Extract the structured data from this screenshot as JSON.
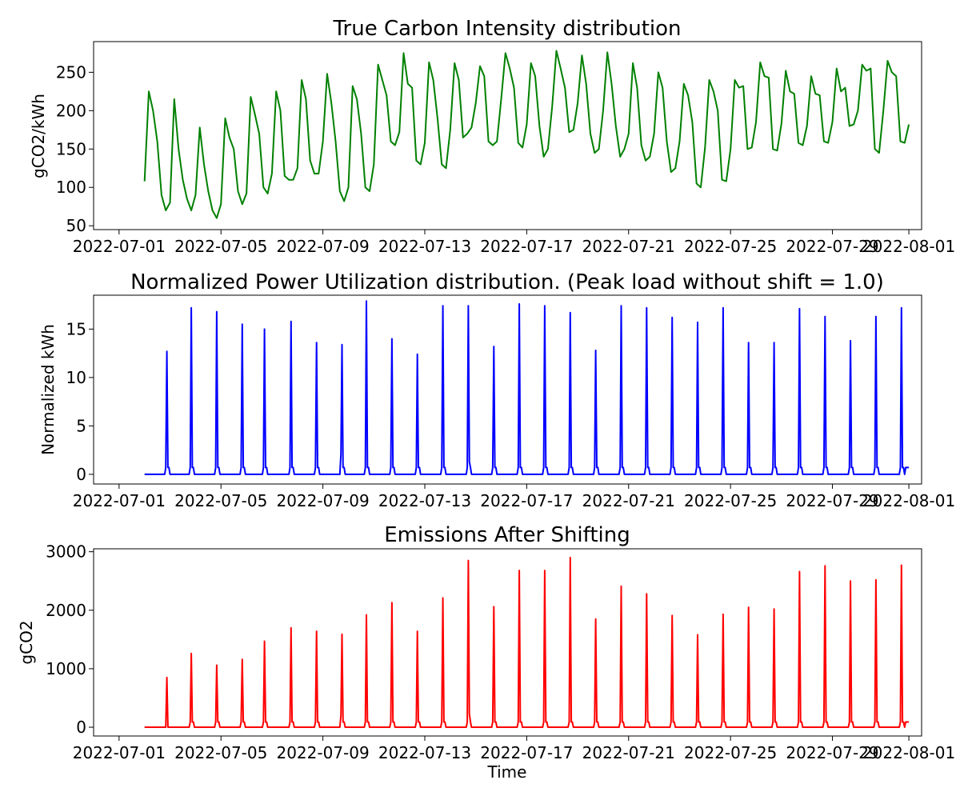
{
  "chart_data": [
    {
      "type": "line",
      "title": "True Carbon Intensity distribution",
      "ylabel": "gCO2/kWh",
      "xlabel": "",
      "color": "#008000",
      "grid": false,
      "ylim": [
        45,
        290
      ],
      "yticks": [
        50,
        100,
        150,
        200,
        250
      ],
      "xlim": [
        "2022-06-30T00:00",
        "2022-08-01T12:00"
      ],
      "xticks": [
        "2022-07-01",
        "2022-07-05",
        "2022-07-09",
        "2022-07-13",
        "2022-07-17",
        "2022-07-21",
        "2022-07-25",
        "2022-07-29",
        "2022-08-01"
      ],
      "series": [
        {
          "x": [
            "2022-07-02T00:00",
            "2022-07-02T04:00",
            "2022-07-02T08:00",
            "2022-07-02T12:00",
            "2022-07-02T16:00",
            "2022-07-02T20:00",
            "2022-07-03T00:00",
            "2022-07-03T04:00",
            "2022-07-03T08:00",
            "2022-07-03T12:00",
            "2022-07-03T16:00",
            "2022-07-03T20:00",
            "2022-07-04T00:00",
            "2022-07-04T04:00",
            "2022-07-04T08:00",
            "2022-07-04T12:00",
            "2022-07-04T16:00",
            "2022-07-04T20:00",
            "2022-07-05T00:00",
            "2022-07-05T04:00",
            "2022-07-05T08:00",
            "2022-07-05T12:00",
            "2022-07-05T16:00",
            "2022-07-05T20:00",
            "2022-07-06T00:00",
            "2022-07-06T04:00",
            "2022-07-06T08:00",
            "2022-07-06T12:00",
            "2022-07-06T16:00",
            "2022-07-06T20:00",
            "2022-07-07T00:00",
            "2022-07-07T04:00",
            "2022-07-07T08:00",
            "2022-07-07T12:00",
            "2022-07-07T16:00",
            "2022-07-07T20:00",
            "2022-07-08T00:00",
            "2022-07-08T04:00",
            "2022-07-08T08:00",
            "2022-07-08T12:00",
            "2022-07-08T16:00",
            "2022-07-08T20:00",
            "2022-07-09T00:00",
            "2022-07-09T04:00",
            "2022-07-09T08:00",
            "2022-07-09T12:00",
            "2022-07-09T16:00",
            "2022-07-09T20:00",
            "2022-07-10T00:00",
            "2022-07-10T04:00",
            "2022-07-10T08:00",
            "2022-07-10T12:00",
            "2022-07-10T16:00",
            "2022-07-10T20:00",
            "2022-07-11T00:00",
            "2022-07-11T04:00",
            "2022-07-11T08:00",
            "2022-07-11T12:00",
            "2022-07-11T16:00",
            "2022-07-11T20:00",
            "2022-07-12T00:00",
            "2022-07-12T04:00",
            "2022-07-12T08:00",
            "2022-07-12T12:00",
            "2022-07-12T16:00",
            "2022-07-12T20:00",
            "2022-07-13T00:00",
            "2022-07-13T04:00",
            "2022-07-13T08:00",
            "2022-07-13T12:00",
            "2022-07-13T16:00",
            "2022-07-13T20:00",
            "2022-07-14T00:00",
            "2022-07-14T04:00",
            "2022-07-14T08:00",
            "2022-07-14T12:00",
            "2022-07-14T16:00",
            "2022-07-14T20:00",
            "2022-07-15T00:00",
            "2022-07-15T04:00",
            "2022-07-15T08:00",
            "2022-07-15T12:00",
            "2022-07-15T16:00",
            "2022-07-15T20:00",
            "2022-07-16T00:00",
            "2022-07-16T04:00",
            "2022-07-16T08:00",
            "2022-07-16T12:00",
            "2022-07-16T16:00",
            "2022-07-16T20:00",
            "2022-07-17T00:00",
            "2022-07-17T04:00",
            "2022-07-17T08:00",
            "2022-07-17T12:00",
            "2022-07-17T16:00",
            "2022-07-17T20:00",
            "2022-07-18T00:00",
            "2022-07-18T04:00",
            "2022-07-18T08:00",
            "2022-07-18T12:00",
            "2022-07-18T16:00",
            "2022-07-18T20:00",
            "2022-07-19T00:00",
            "2022-07-19T04:00",
            "2022-07-19T08:00",
            "2022-07-19T12:00",
            "2022-07-19T16:00",
            "2022-07-19T20:00",
            "2022-07-20T00:00",
            "2022-07-20T04:00",
            "2022-07-20T08:00",
            "2022-07-20T12:00",
            "2022-07-20T16:00",
            "2022-07-20T20:00",
            "2022-07-21T00:00",
            "2022-07-21T04:00",
            "2022-07-21T08:00",
            "2022-07-21T12:00",
            "2022-07-21T16:00",
            "2022-07-21T20:00",
            "2022-07-22T00:00",
            "2022-07-22T04:00",
            "2022-07-22T08:00",
            "2022-07-22T12:00",
            "2022-07-22T16:00",
            "2022-07-22T20:00",
            "2022-07-23T00:00",
            "2022-07-23T04:00",
            "2022-07-23T08:00",
            "2022-07-23T12:00",
            "2022-07-23T16:00",
            "2022-07-23T20:00",
            "2022-07-24T00:00",
            "2022-07-24T04:00",
            "2022-07-24T08:00",
            "2022-07-24T12:00",
            "2022-07-24T16:00",
            "2022-07-24T20:00",
            "2022-07-25T00:00",
            "2022-07-25T04:00",
            "2022-07-25T08:00",
            "2022-07-25T12:00",
            "2022-07-25T16:00",
            "2022-07-25T20:00",
            "2022-07-26T00:00",
            "2022-07-26T04:00",
            "2022-07-26T08:00",
            "2022-07-26T12:00",
            "2022-07-26T16:00",
            "2022-07-26T20:00",
            "2022-07-27T00:00",
            "2022-07-27T04:00",
            "2022-07-27T08:00",
            "2022-07-27T12:00",
            "2022-07-27T16:00",
            "2022-07-27T20:00",
            "2022-07-28T00:00",
            "2022-07-28T04:00",
            "2022-07-28T08:00",
            "2022-07-28T12:00",
            "2022-07-28T16:00",
            "2022-07-28T20:00",
            "2022-07-29T00:00",
            "2022-07-29T04:00",
            "2022-07-29T08:00",
            "2022-07-29T12:00",
            "2022-07-29T16:00",
            "2022-07-29T20:00",
            "2022-07-30T00:00",
            "2022-07-30T04:00",
            "2022-07-30T08:00",
            "2022-07-30T12:00",
            "2022-07-30T16:00",
            "2022-07-30T20:00",
            "2022-07-31T00:00",
            "2022-07-31T04:00",
            "2022-07-31T08:00",
            "2022-07-31T12:00",
            "2022-07-31T16:00",
            "2022-07-31T20:00",
            "2022-08-01T00:00"
          ],
          "values": [
            108,
            225,
            200,
            160,
            90,
            70,
            80,
            215,
            150,
            110,
            85,
            70,
            90,
            178,
            130,
            95,
            70,
            60,
            78,
            190,
            165,
            150,
            95,
            78,
            92,
            218,
            195,
            170,
            100,
            92,
            118,
            225,
            200,
            115,
            110,
            110,
            125,
            240,
            215,
            135,
            118,
            118,
            160,
            248,
            210,
            160,
            95,
            82,
            100,
            232,
            215,
            170,
            100,
            95,
            130,
            260,
            240,
            220,
            160,
            155,
            172,
            275,
            235,
            230,
            135,
            130,
            158,
            263,
            240,
            190,
            130,
            125,
            175,
            262,
            240,
            165,
            170,
            178,
            210,
            258,
            245,
            160,
            155,
            160,
            215,
            275,
            255,
            230,
            158,
            152,
            182,
            262,
            245,
            180,
            140,
            150,
            205,
            278,
            255,
            230,
            172,
            175,
            210,
            272,
            235,
            170,
            145,
            150,
            200,
            276,
            235,
            180,
            140,
            150,
            170,
            262,
            230,
            155,
            135,
            140,
            170,
            250,
            230,
            160,
            120,
            125,
            160,
            235,
            220,
            185,
            105,
            100,
            152,
            240,
            225,
            200,
            110,
            108,
            150,
            240,
            230,
            232,
            150,
            152,
            185,
            263,
            245,
            243,
            150,
            148,
            183,
            252,
            225,
            222,
            158,
            155,
            180,
            245,
            222,
            220,
            160,
            158,
            185,
            255,
            225,
            230,
            180,
            182,
            200,
            260,
            252,
            255,
            150,
            145,
            200,
            265,
            250,
            245,
            160,
            158,
            182
          ]
        }
      ]
    },
    {
      "type": "line",
      "title": "Normalized Power Utilization distribution. (Peak load without shift = 1.0)",
      "ylabel": "Normalized kWh",
      "xlabel": "",
      "color": "#0000ff",
      "grid": false,
      "ylim": [
        -1,
        18.5
      ],
      "yticks": [
        0,
        5,
        10,
        15
      ],
      "xlim": [
        "2022-06-30T00:00",
        "2022-08-01T12:00"
      ],
      "xticks": [
        "2022-07-01",
        "2022-07-05",
        "2022-07-09",
        "2022-07-13",
        "2022-07-17",
        "2022-07-21",
        "2022-07-25",
        "2022-07-29",
        "2022-08-01"
      ],
      "baseline": 0,
      "plateau": 0.7,
      "series_start": "2022-07-02T00:00",
      "series_end": "2022-08-01T00:00",
      "series": [
        {
          "spike_times": [
            "2022-07-02T21:00",
            "2022-07-03T20:00",
            "2022-07-04T20:00",
            "2022-07-05T20:00",
            "2022-07-06T17:00",
            "2022-07-07T18:00",
            "2022-07-08T18:00",
            "2022-07-09T17:00",
            "2022-07-09T18:00",
            "2022-07-10T17:00",
            "2022-07-11T17:00",
            "2022-07-12T17:00",
            "2022-07-13T17:00",
            "2022-07-14T17:00",
            "2022-07-14T18:00",
            "2022-07-15T17:00",
            "2022-07-16T17:00",
            "2022-07-17T17:00",
            "2022-07-18T17:00",
            "2022-07-19T17:00",
            "2022-07-20T17:00",
            "2022-07-21T17:00",
            "2022-07-22T17:00",
            "2022-07-23T17:00",
            "2022-07-24T17:00",
            "2022-07-25T17:00",
            "2022-07-26T17:00",
            "2022-07-27T17:00",
            "2022-07-28T17:00",
            "2022-07-29T17:00",
            "2022-07-30T17:00",
            "2022-07-31T17:00"
          ],
          "spike_values": [
            12.7,
            17.2,
            16.8,
            15.5,
            15.0,
            15.8,
            13.6,
            2.1,
            13.4,
            17.9,
            14.0,
            12.4,
            17.4,
            17.4,
            1.3,
            13.2,
            17.6,
            17.4,
            16.7,
            12.8,
            17.4,
            17.2,
            16.2,
            15.7,
            17.2,
            13.6,
            13.6,
            17.1,
            16.3,
            13.8,
            16.3,
            17.2
          ]
        }
      ]
    },
    {
      "type": "line",
      "title": "Emissions After Shifting",
      "ylabel": "gCO2",
      "xlabel": "Time",
      "color": "#ff0000",
      "grid": false,
      "ylim": [
        -150,
        3050
      ],
      "yticks": [
        0,
        1000,
        2000,
        3000
      ],
      "xlim": [
        "2022-06-30T00:00",
        "2022-08-01T12:00"
      ],
      "xticks": [
        "2022-07-01",
        "2022-07-05",
        "2022-07-09",
        "2022-07-13",
        "2022-07-17",
        "2022-07-21",
        "2022-07-25",
        "2022-07-29",
        "2022-08-01"
      ],
      "baseline": 0,
      "plateau": 90,
      "series_start": "2022-07-02T00:00",
      "series_end": "2022-08-01T00:00",
      "series": [
        {
          "spike_times": [
            "2022-07-02T21:00",
            "2022-07-03T20:00",
            "2022-07-04T20:00",
            "2022-07-05T20:00",
            "2022-07-06T17:00",
            "2022-07-07T18:00",
            "2022-07-08T18:00",
            "2022-07-09T17:00",
            "2022-07-09T18:00",
            "2022-07-10T17:00",
            "2022-07-11T17:00",
            "2022-07-12T17:00",
            "2022-07-13T17:00",
            "2022-07-14T17:00",
            "2022-07-14T18:00",
            "2022-07-15T17:00",
            "2022-07-16T17:00",
            "2022-07-17T17:00",
            "2022-07-18T17:00",
            "2022-07-19T17:00",
            "2022-07-20T17:00",
            "2022-07-21T17:00",
            "2022-07-22T17:00",
            "2022-07-23T17:00",
            "2022-07-24T17:00",
            "2022-07-25T17:00",
            "2022-07-26T17:00",
            "2022-07-27T17:00",
            "2022-07-28T17:00",
            "2022-07-29T17:00",
            "2022-07-30T17:00",
            "2022-07-31T17:00"
          ],
          "spike_values": [
            850,
            1260,
            1060,
            1160,
            1470,
            1700,
            1640,
            200,
            1590,
            1920,
            2130,
            1640,
            2210,
            2850,
            230,
            2060,
            2680,
            2680,
            2900,
            1850,
            2410,
            2280,
            1910,
            1580,
            1930,
            2050,
            2020,
            2660,
            2760,
            2500,
            2520,
            2770
          ]
        }
      ]
    }
  ]
}
